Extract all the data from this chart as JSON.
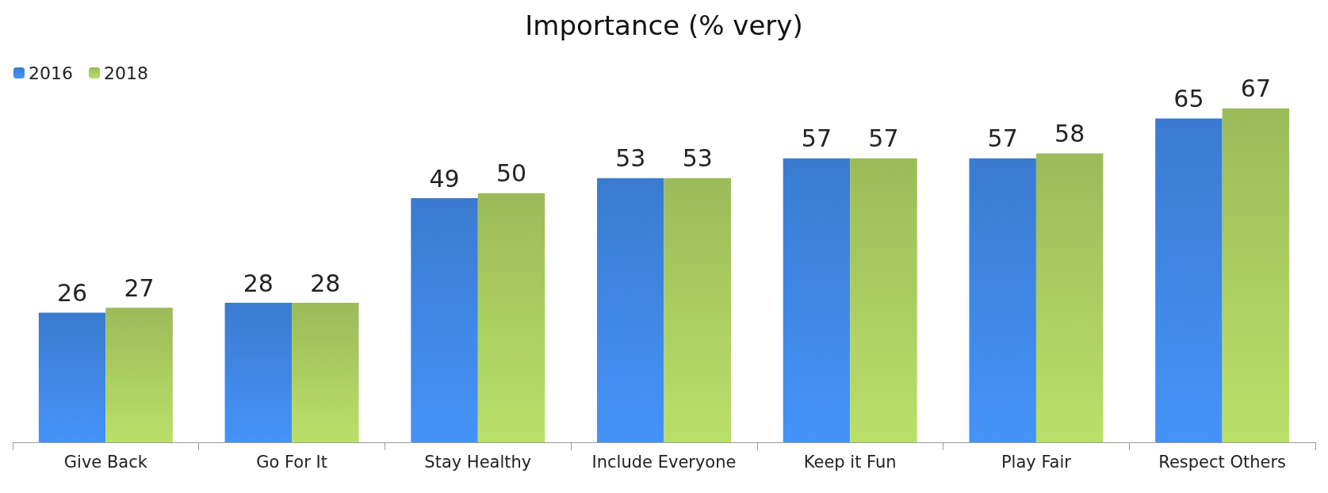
{
  "chart_data": {
    "type": "bar",
    "title": "Importance (% very)",
    "categories": [
      "Give Back",
      "Go For It",
      "Stay Healthy",
      "Include Everyone",
      "Keep it Fun",
      "Play Fair",
      "Respect Others"
    ],
    "series": [
      {
        "name": "2016",
        "color": "#3a7bd0",
        "values": [
          26,
          28,
          49,
          53,
          57,
          57,
          65
        ]
      },
      {
        "name": "2018",
        "color": "#9bbb59",
        "values": [
          27,
          28,
          50,
          53,
          57,
          58,
          67
        ]
      }
    ],
    "data_labels": true,
    "legend": "top left"
  }
}
